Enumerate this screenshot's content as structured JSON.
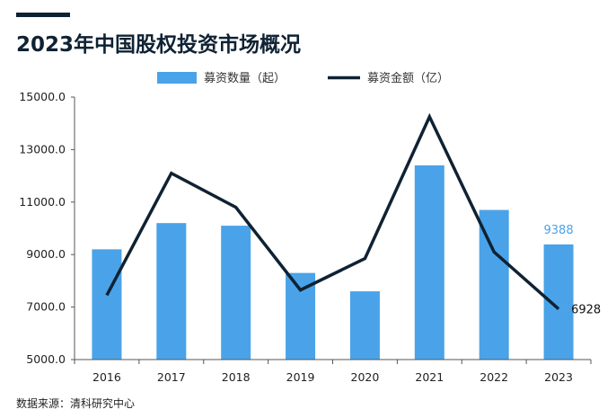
{
  "title": "2023年中国股权投资市场概况",
  "source": "数据来源：清科研究中心",
  "colors": {
    "bar": "#4aa3e8",
    "line": "#0f2233",
    "bar_label": "#4aa3e8",
    "axis": "#555555"
  },
  "chart_data": {
    "type": "bar+line",
    "title": "2023年中国股权投资市场概况",
    "categories": [
      "2016",
      "2017",
      "2018",
      "2019",
      "2020",
      "2021",
      "2022",
      "2023"
    ],
    "ylim": [
      5000,
      15000
    ],
    "yticks": [
      "5000.0",
      "7000.0",
      "9000.0",
      "11000.0",
      "13000.0",
      "15000.0"
    ],
    "grid": false,
    "legend_position": "top-center",
    "series": [
      {
        "name": "募资数量（起）",
        "type": "bar",
        "values": [
          9200,
          10200,
          10100,
          8300,
          7600,
          12400,
          10700,
          9388
        ]
      },
      {
        "name": "募资金额（亿）",
        "type": "line",
        "values": [
          7450,
          12100,
          10800,
          7650,
          8850,
          14250,
          9100,
          6928
        ]
      }
    ],
    "annotations": [
      {
        "series": 0,
        "index": 7,
        "text": "9388"
      },
      {
        "series": 1,
        "index": 7,
        "text": "6928"
      }
    ]
  }
}
